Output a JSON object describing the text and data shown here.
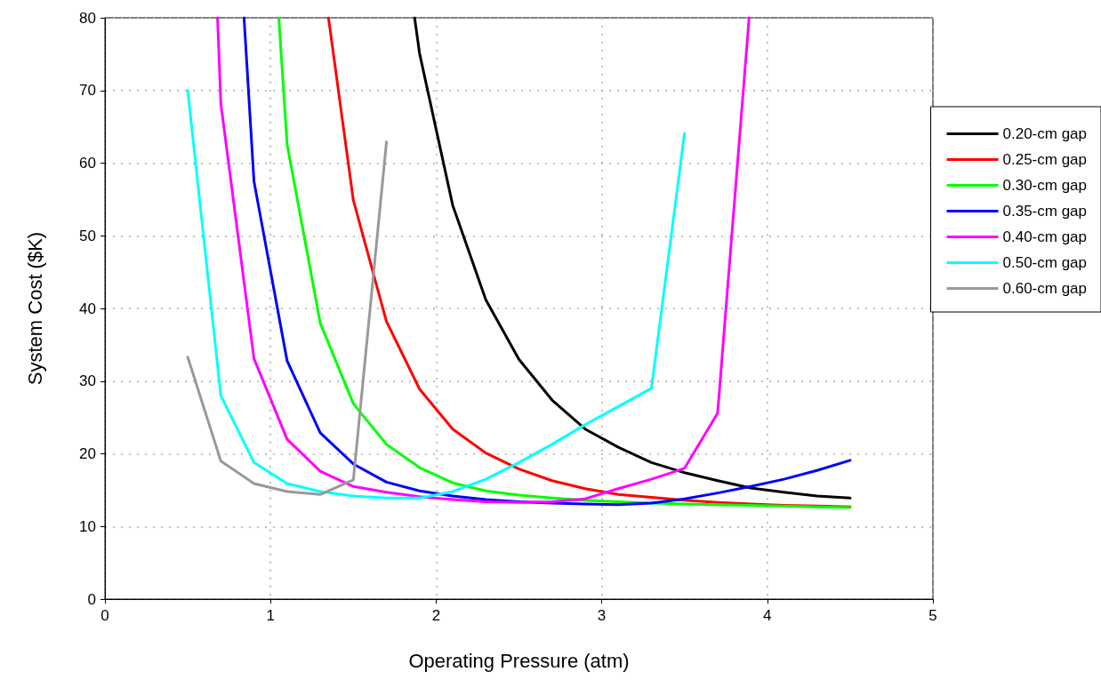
{
  "chart_data": {
    "type": "line",
    "xlabel": "Operating Pressure (atm)",
    "ylabel": "System Cost ($K)",
    "xlim": [
      0,
      5
    ],
    "xticks": [
      0,
      1,
      2,
      3,
      4,
      5
    ],
    "ylim": [
      0,
      80
    ],
    "yticks": [
      0,
      10,
      20,
      30,
      40,
      50,
      60,
      70,
      80
    ],
    "grid": true,
    "legend": "right",
    "marker": "none",
    "line_style": "solid",
    "series": [
      {
        "name": "0.20-cm gap",
        "color": "#000000",
        "x": [
          1.87,
          1.9,
          2.1,
          2.3,
          2.5,
          2.7,
          2.9,
          3.1,
          3.3,
          3.5,
          3.7,
          3.9,
          4.1,
          4.3,
          4.5
        ],
        "values": [
          80,
          75.1,
          54.2,
          41.2,
          33.0,
          27.4,
          23.4,
          20.9,
          18.8,
          17.4,
          16.3,
          15.3,
          14.7,
          14.2,
          13.9
        ]
      },
      {
        "name": "0.25-cm gap",
        "color": "#ff0000",
        "x": [
          1.35,
          1.5,
          1.7,
          1.9,
          2.1,
          2.3,
          2.5,
          2.7,
          2.9,
          3.1,
          3.3,
          3.5,
          3.7,
          3.9,
          4.1,
          4.3,
          4.5
        ],
        "values": [
          80,
          54.9,
          38.2,
          28.9,
          23.4,
          20.1,
          17.9,
          16.3,
          15.2,
          14.4,
          14.0,
          13.6,
          13.3,
          13.1,
          12.9,
          12.8,
          12.7
        ]
      },
      {
        "name": "0.30-cm gap",
        "color": "#00ff00",
        "x": [
          1.05,
          1.1,
          1.3,
          1.5,
          1.7,
          1.9,
          2.1,
          2.3,
          2.5,
          2.7,
          2.9,
          3.1,
          3.3,
          3.5,
          3.7,
          3.9,
          4.1,
          4.3,
          4.5
        ],
        "values": [
          80,
          62.6,
          38.0,
          26.9,
          21.3,
          18.1,
          16.0,
          14.9,
          14.3,
          13.9,
          13.6,
          13.4,
          13.2,
          13.1,
          13.0,
          12.9,
          12.8,
          12.7,
          12.6
        ]
      },
      {
        "name": "0.35-cm gap",
        "color": "#0000ff",
        "x": [
          0.84,
          0.9,
          1.1,
          1.3,
          1.5,
          1.7,
          1.9,
          2.1,
          2.3,
          2.5,
          2.7,
          2.9,
          3.1,
          3.3,
          3.5,
          3.7,
          3.9,
          4.1,
          4.3,
          4.5
        ],
        "values": [
          80,
          57.5,
          32.8,
          22.9,
          18.6,
          16.1,
          14.9,
          14.2,
          13.7,
          13.4,
          13.2,
          13.1,
          13.0,
          13.2,
          13.8,
          14.6,
          15.5,
          16.5,
          17.7,
          19.1
        ]
      },
      {
        "name": "0.40-cm gap",
        "color": "#ff00ff",
        "x": [
          0.68,
          0.7,
          0.9,
          1.1,
          1.3,
          1.5,
          1.7,
          1.9,
          2.1,
          2.3,
          2.5,
          2.7,
          2.9,
          3.1,
          3.3,
          3.5,
          3.7,
          3.89
        ],
        "values": [
          80,
          68.2,
          33.1,
          22.0,
          17.6,
          15.5,
          14.7,
          14.1,
          13.7,
          13.4,
          13.3,
          13.4,
          13.8,
          15.2,
          16.5,
          18.0,
          25.6,
          80
        ]
      },
      {
        "name": "0.50-cm gap",
        "color": "#00ffff",
        "x": [
          0.5,
          0.7,
          0.9,
          1.1,
          1.3,
          1.5,
          1.7,
          1.9,
          2.1,
          2.3,
          2.5,
          2.7,
          2.9,
          3.1,
          3.3,
          3.5
        ],
        "values": [
          70.0,
          28.0,
          18.8,
          15.9,
          14.8,
          14.2,
          13.9,
          13.9,
          14.8,
          16.5,
          18.8,
          21.3,
          24.0,
          26.5,
          29.0,
          64.1
        ]
      },
      {
        "name": "0.60-cm gap",
        "color": "#999999",
        "x": [
          0.5,
          0.7,
          0.9,
          1.1,
          1.3,
          1.5,
          1.7
        ],
        "values": [
          33.3,
          19.0,
          15.9,
          14.8,
          14.4,
          16.4,
          62.9
        ]
      }
    ]
  }
}
